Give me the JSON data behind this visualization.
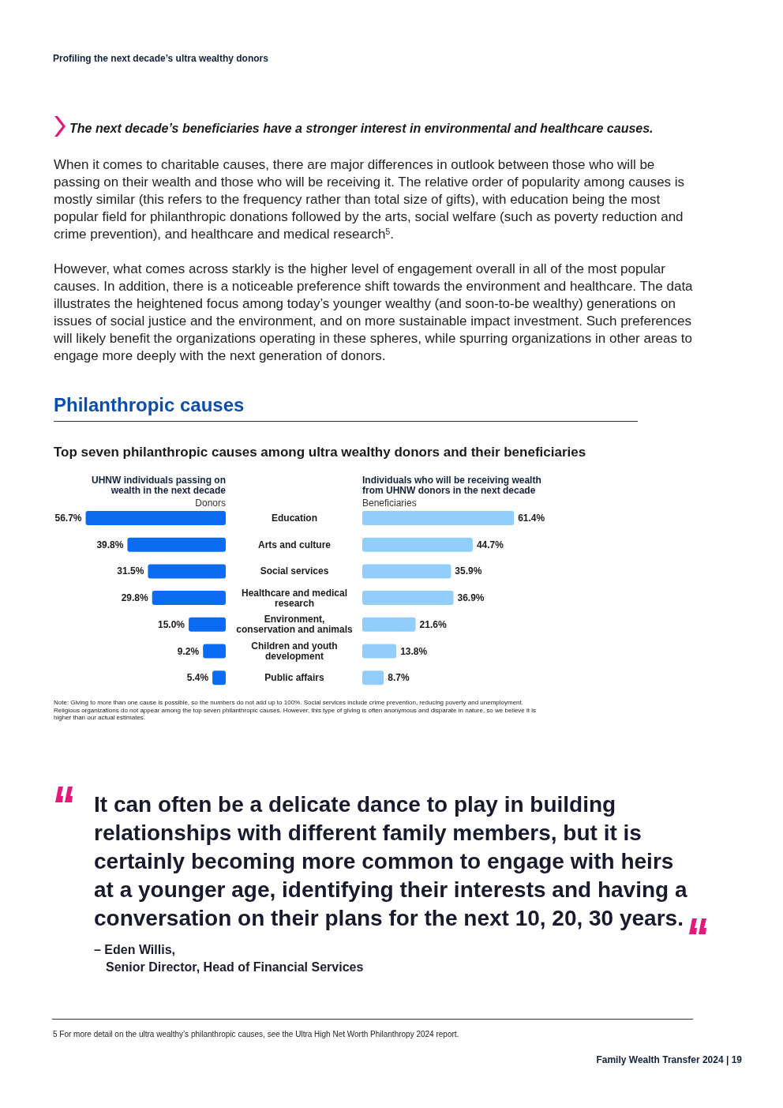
{
  "chart_data": [
    {
      "type": "bar",
      "orientation": "horizontal",
      "title": "Philanthropic causes",
      "subtitle": "Top seven philanthropic causes among ultra wealthy donors and their beneficiaries",
      "tick_labels": "y",
      "categories": [
        "Education",
        "Arts and culture",
        "Social services",
        "Healthcare and medical research",
        "Environment, conservation and animals",
        "Children and youth development",
        "Public affairs"
      ],
      "series": [
        {
          "name": "Donors",
          "color": "#0b6cf2",
          "values": [
            56.7,
            39.8,
            31.5,
            29.8,
            15.0,
            9.2,
            5.4
          ],
          "value_labels": [
            "56.7%",
            "39.8%",
            "31.5%",
            "29.8%",
            "15.0%",
            "9.2%",
            "5.4%"
          ]
        }
      ],
      "annotations": [
        "Profiling the next decade’s ultra wealthy donors",
        "The next decade’s beneficiaries have a stronger interest in environmental and healthcare causes.",
        "When it comes to charitable causes, there are major differences in outlook between those who will be passing on their wealth and those who will be receiving it. The relative order of popularity among causes is mostly similar (this refers to the frequency rather than total size of gifts), with education being the most popular field for philanthropic donations followed by the arts, social welfare (such as poverty reduction and crime prevention), and healthcare and medical research$^{5}$.",
        "However, what comes across starkly is the higher level of engagement overall in all of the most popular causes. In addition, there is a noticeable preference shift towards the environment and healthcare. The data illustrates the heightened focus among today’s younger wealthy (and soon-to-be wealthy) generations on issues of social justice and the environment, and on more sustainable impact investment. Such preferences will likely benefit the organizations operating in these spheres, while spurring organizations in other areas to engage more deeply with the next generation of donors.",
        "UHNW individuals passing on wealth in the next decade",
        "Individuals who will be receiving wealth from UHNW donors in the next decade",
        "Note: Giving to more than one cause is possible, so the numbers do not add up to 100%. Social services include crime prevention, reducing poverty and unemployment. Religious organizations do not appear among the top seven philanthropic causes. However, this type of giving is often anonymous and disparate in nature, so we believe it is higher than our actual estimates.",
        "It can often be a delicate dance to play in building relationships with different family members, but it is certainly becoming more common to engage with heirs at a younger age, identifying their interests and having a conversation on their plans for the next 10, 20, 30 years.",
        "– Eden Willis,",
        "Senior Director, Head of Financial Services",
        "5   For more detail on the ultra wealthy’s philanthropic causes, see the Ultra High Net Worth Philanthropy 2024 report.",
        "Family Wealth Transfer 2024   |   19"
      ]
    },
    {
      "type": "bar",
      "orientation": "horizontal",
      "tick_labels": false,
      "categories": [
        null,
        null,
        null,
        null,
        null,
        null,
        null
      ],
      "series": [
        {
          "name": "Beneficiaries",
          "color": "#92cefb",
          "values": [
            61.4,
            44.7,
            35.9,
            36.9,
            21.6,
            13.8,
            8.7
          ],
          "value_labels": [
            "61.4%",
            "44.7%",
            "35.9%",
            "36.9%",
            "21.6%",
            "13.8%",
            "8.7%"
          ]
        }
      ]
    }
  ]
}
